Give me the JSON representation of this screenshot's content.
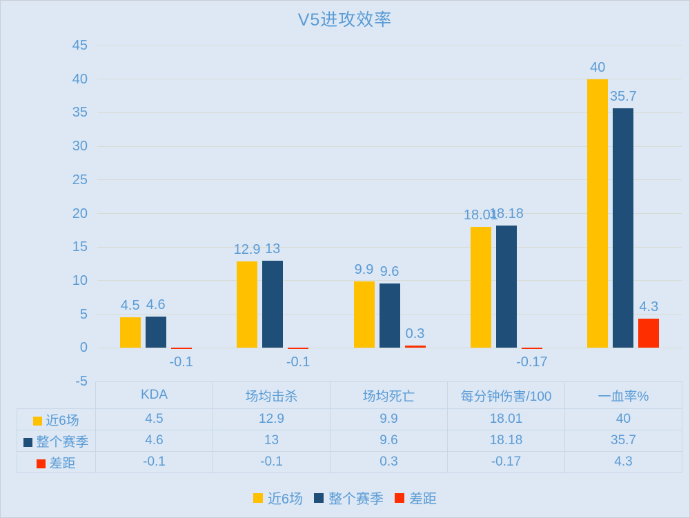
{
  "chart_data": {
    "type": "bar",
    "title": "V5进攻效率",
    "categories": [
      "KDA",
      "场均击杀",
      "场均死亡",
      "每分钟伤害/100",
      "一血率%"
    ],
    "series": [
      {
        "name": "近6场",
        "color": "#FFC000",
        "values": [
          4.5,
          12.9,
          9.9,
          18.01,
          40
        ],
        "labels": [
          "4.5",
          "12.9",
          "9.9",
          "18.01",
          "40"
        ]
      },
      {
        "name": "整个赛季",
        "color": "#1F4E79",
        "values": [
          4.6,
          13,
          9.6,
          18.18,
          35.7
        ],
        "labels": [
          "4.6",
          "13",
          "9.6",
          "18.18",
          "35.7"
        ]
      },
      {
        "name": "差距",
        "color": "#FF2E00",
        "values": [
          -0.1,
          -0.1,
          0.3,
          -0.17,
          4.3
        ],
        "labels": [
          "-0.1",
          "-0.1",
          "0.3",
          "-0.17",
          "4.3"
        ]
      }
    ],
    "ylim": [
      -5,
      45
    ],
    "ystep": 5,
    "y_ticks": [
      "45",
      "40",
      "35",
      "30",
      "25",
      "20",
      "15",
      "10",
      "5",
      "0",
      "-5"
    ],
    "grid": true,
    "legend_position": "bottom",
    "data_table_shown": true
  },
  "colors": {
    "background": "#DDE8F4",
    "text": "#5B9BD5",
    "gridline": "#D8DBD3",
    "table_border": "#C8D6E6",
    "series_last6": "#FFC000",
    "series_season": "#1F4E79",
    "series_gap": "#FF2E00"
  }
}
